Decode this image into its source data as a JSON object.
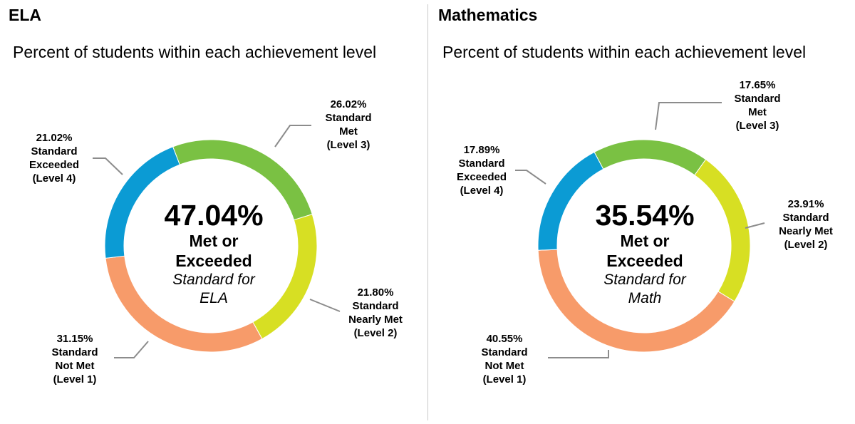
{
  "chart_data": [
    {
      "type": "pie",
      "heading": "ELA",
      "title": "Percent of students within each achievement level",
      "center": {
        "value": "47.04%",
        "line1": "Met or",
        "line2": "Exceeded",
        "line3": "Standard for",
        "line4": "ELA"
      },
      "slices": [
        {
          "value": 26.02,
          "pct_text": "26.02%",
          "name_lines": [
            "Standard",
            "Met"
          ],
          "level": "(Level 3)",
          "color": "#7ac143"
        },
        {
          "value": 21.8,
          "pct_text": "21.80%",
          "name_lines": [
            "Standard",
            "Nearly Met"
          ],
          "level": "(Level 2)",
          "color": "#d7df23"
        },
        {
          "value": 31.15,
          "pct_text": "31.15%",
          "name_lines": [
            "Standard",
            "Not Met"
          ],
          "level": "(Level 1)",
          "color": "#f79b6a"
        },
        {
          "value": 21.02,
          "pct_text": "21.02%",
          "name_lines": [
            "Standard",
            "Exceeded"
          ],
          "level": "(Level 4)",
          "color": "#0b9bd4"
        }
      ]
    },
    {
      "type": "pie",
      "heading": "Mathematics",
      "title": "Percent of students within each achievement level",
      "center": {
        "value": "35.54%",
        "line1": "Met or",
        "line2": "Exceeded",
        "line3": "Standard for",
        "line4": "Math"
      },
      "slices": [
        {
          "value": 17.65,
          "pct_text": "17.65%",
          "name_lines": [
            "Standard",
            "Met"
          ],
          "level": "(Level 3)",
          "color": "#7ac143"
        },
        {
          "value": 23.91,
          "pct_text": "23.91%",
          "name_lines": [
            "Standard",
            "Nearly Met"
          ],
          "level": "(Level 2)",
          "color": "#d7df23"
        },
        {
          "value": 40.55,
          "pct_text": "40.55%",
          "name_lines": [
            "Standard",
            "Not Met"
          ],
          "level": "(Level 1)",
          "color": "#f79b6a"
        },
        {
          "value": 17.89,
          "pct_text": "17.89%",
          "name_lines": [
            "Standard",
            "Exceeded"
          ],
          "level": "(Level 4)",
          "color": "#0b9bd4"
        }
      ]
    }
  ]
}
